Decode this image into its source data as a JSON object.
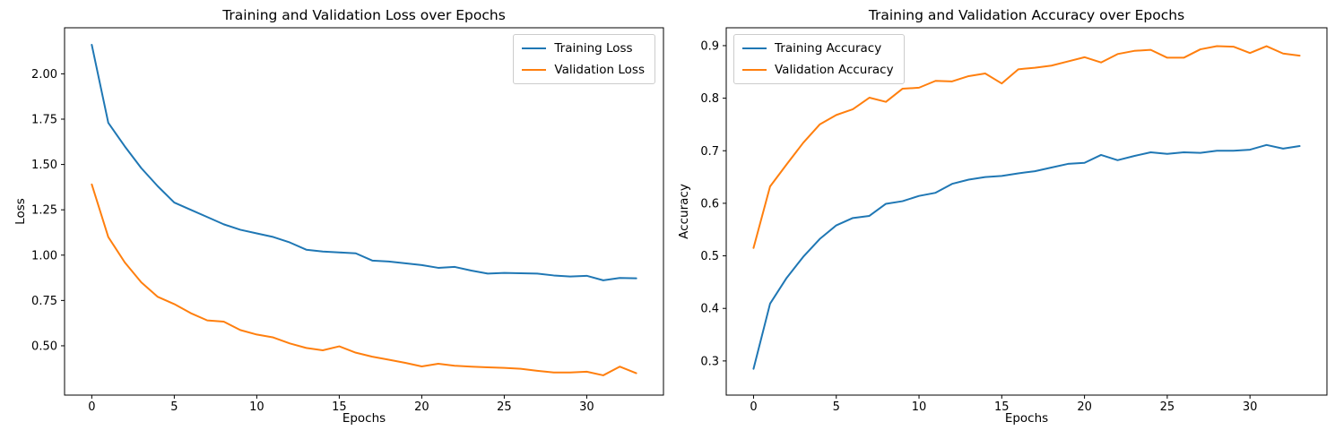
{
  "figure": {
    "background": "#ffffff"
  },
  "colors": {
    "training": "#1f77b4",
    "validation": "#ff7f0e",
    "text": "#000000",
    "spine": "#000000",
    "legend_border": "#cccccc"
  },
  "chart_data": [
    {
      "type": "line",
      "title": "Training and Validation Loss over Epochs",
      "xlabel": "Epochs",
      "ylabel": "Loss",
      "x": [
        0,
        1,
        2,
        3,
        4,
        5,
        6,
        7,
        8,
        9,
        10,
        11,
        12,
        13,
        14,
        15,
        16,
        17,
        18,
        19,
        20,
        21,
        22,
        23,
        24,
        25,
        26,
        27,
        28,
        29,
        30,
        31,
        32,
        33
      ],
      "series": [
        {
          "name": "Training Loss",
          "color": "#1f77b4",
          "values": [
            2.16,
            1.73,
            1.6,
            1.48,
            1.38,
            1.29,
            1.25,
            1.21,
            1.17,
            1.14,
            1.12,
            1.1,
            1.07,
            1.03,
            1.02,
            1.015,
            1.01,
            0.97,
            0.965,
            0.955,
            0.945,
            0.93,
            0.935,
            0.915,
            0.898,
            0.902,
            0.9,
            0.898,
            0.888,
            0.882,
            0.886,
            0.861,
            0.874,
            0.872
          ]
        },
        {
          "name": "Validation Loss",
          "color": "#ff7f0e",
          "values": [
            1.39,
            1.1,
            0.96,
            0.85,
            0.77,
            0.73,
            0.68,
            0.64,
            0.633,
            0.587,
            0.562,
            0.546,
            0.513,
            0.488,
            0.475,
            0.497,
            0.462,
            0.44,
            0.423,
            0.406,
            0.386,
            0.401,
            0.39,
            0.385,
            0.381,
            0.378,
            0.373,
            0.362,
            0.353,
            0.353,
            0.357,
            0.337,
            0.385,
            0.349
          ]
        }
      ],
      "xlim": [
        -1.65,
        34.65
      ],
      "ylim": [
        0.228,
        2.254
      ],
      "xticks": [
        0,
        5,
        10,
        15,
        20,
        25,
        30
      ],
      "xtick_labels": [
        "0",
        "5",
        "10",
        "15",
        "20",
        "25",
        "30"
      ],
      "yticks": [
        0.5,
        0.75,
        1.0,
        1.25,
        1.5,
        1.75,
        2.0
      ],
      "ytick_labels": [
        "0.50",
        "0.75",
        "1.00",
        "1.25",
        "1.50",
        "1.75",
        "2.00"
      ],
      "legend_position": "upper-right",
      "grid": false
    },
    {
      "type": "line",
      "title": "Training and Validation Accuracy over Epochs",
      "xlabel": "Epochs",
      "ylabel": "Accuracy",
      "x": [
        0,
        1,
        2,
        3,
        4,
        5,
        6,
        7,
        8,
        9,
        10,
        11,
        12,
        13,
        14,
        15,
        16,
        17,
        18,
        19,
        20,
        21,
        22,
        23,
        24,
        25,
        26,
        27,
        28,
        29,
        30,
        31,
        32,
        33
      ],
      "series": [
        {
          "name": "Training Accuracy",
          "color": "#1f77b4",
          "values": [
            0.285,
            0.409,
            0.458,
            0.498,
            0.532,
            0.558,
            0.572,
            0.576,
            0.599,
            0.604,
            0.614,
            0.62,
            0.637,
            0.645,
            0.65,
            0.652,
            0.657,
            0.661,
            0.668,
            0.675,
            0.677,
            0.692,
            0.682,
            0.69,
            0.697,
            0.694,
            0.697,
            0.696,
            0.7,
            0.7,
            0.702,
            0.711,
            0.704,
            0.709
          ]
        },
        {
          "name": "Validation Accuracy",
          "color": "#ff7f0e",
          "values": [
            0.515,
            0.632,
            0.674,
            0.715,
            0.75,
            0.768,
            0.779,
            0.801,
            0.793,
            0.818,
            0.82,
            0.833,
            0.832,
            0.842,
            0.847,
            0.828,
            0.855,
            0.858,
            0.862,
            0.87,
            0.878,
            0.868,
            0.884,
            0.89,
            0.892,
            0.877,
            0.877,
            0.893,
            0.899,
            0.898,
            0.886,
            0.899,
            0.885,
            0.881
          ]
        }
      ],
      "xlim": [
        -1.65,
        34.65
      ],
      "ylim": [
        0.235,
        0.934
      ],
      "xticks": [
        0,
        5,
        10,
        15,
        20,
        25,
        30
      ],
      "xtick_labels": [
        "0",
        "5",
        "10",
        "15",
        "20",
        "25",
        "30"
      ],
      "yticks": [
        0.3,
        0.4,
        0.5,
        0.6,
        0.7,
        0.8,
        0.9
      ],
      "ytick_labels": [
        "0.3",
        "0.4",
        "0.5",
        "0.6",
        "0.7",
        "0.8",
        "0.9"
      ],
      "legend_position": "upper-left",
      "grid": false
    }
  ]
}
